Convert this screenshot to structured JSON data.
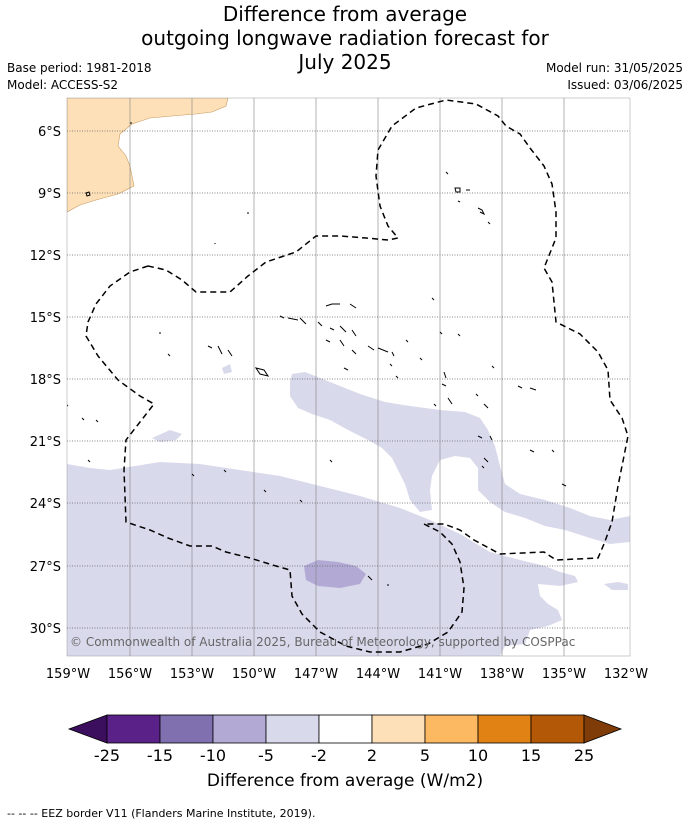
{
  "title": {
    "line1": "Difference from average",
    "line2": "outgoing longwave radiation forecast for",
    "line3": "July 2025"
  },
  "meta_left": {
    "base_period": "Base period: 1981-2018",
    "model": "Model: ACCESS-S2"
  },
  "meta_right": {
    "model_run": "Model run: 31/05/2025",
    "issued": "Issued: 03/06/2025"
  },
  "map": {
    "lat_labels": [
      "6°S",
      "9°S",
      "12°S",
      "15°S",
      "18°S",
      "21°S",
      "24°S",
      "27°S",
      "30°S"
    ],
    "lon_labels": [
      "159°W",
      "156°W",
      "153°W",
      "150°W",
      "147°W",
      "144°W",
      "141°W",
      "138°W",
      "135°W",
      "132°W"
    ],
    "copyright": "© Commonwealth of Australia 2025, Bureau of Meteorology, supported by COSPPac"
  },
  "colorbar": {
    "ticks": [
      "-25",
      "-15",
      "-10",
      "-5",
      "-2",
      "2",
      "5",
      "10",
      "15",
      "25"
    ],
    "colors": [
      "#3b0f5e",
      "#5a2288",
      "#8070b0",
      "#b2aad4",
      "#d9d9ec",
      "#ffffff",
      "#fde0b8",
      "#fdb862",
      "#e08214",
      "#b35806",
      "#7f3b08"
    ],
    "label": "Difference from average (W/m2)"
  },
  "footer": "--  --  -- EEZ border V11 (Flanders Marine Institute, 2019)."
}
